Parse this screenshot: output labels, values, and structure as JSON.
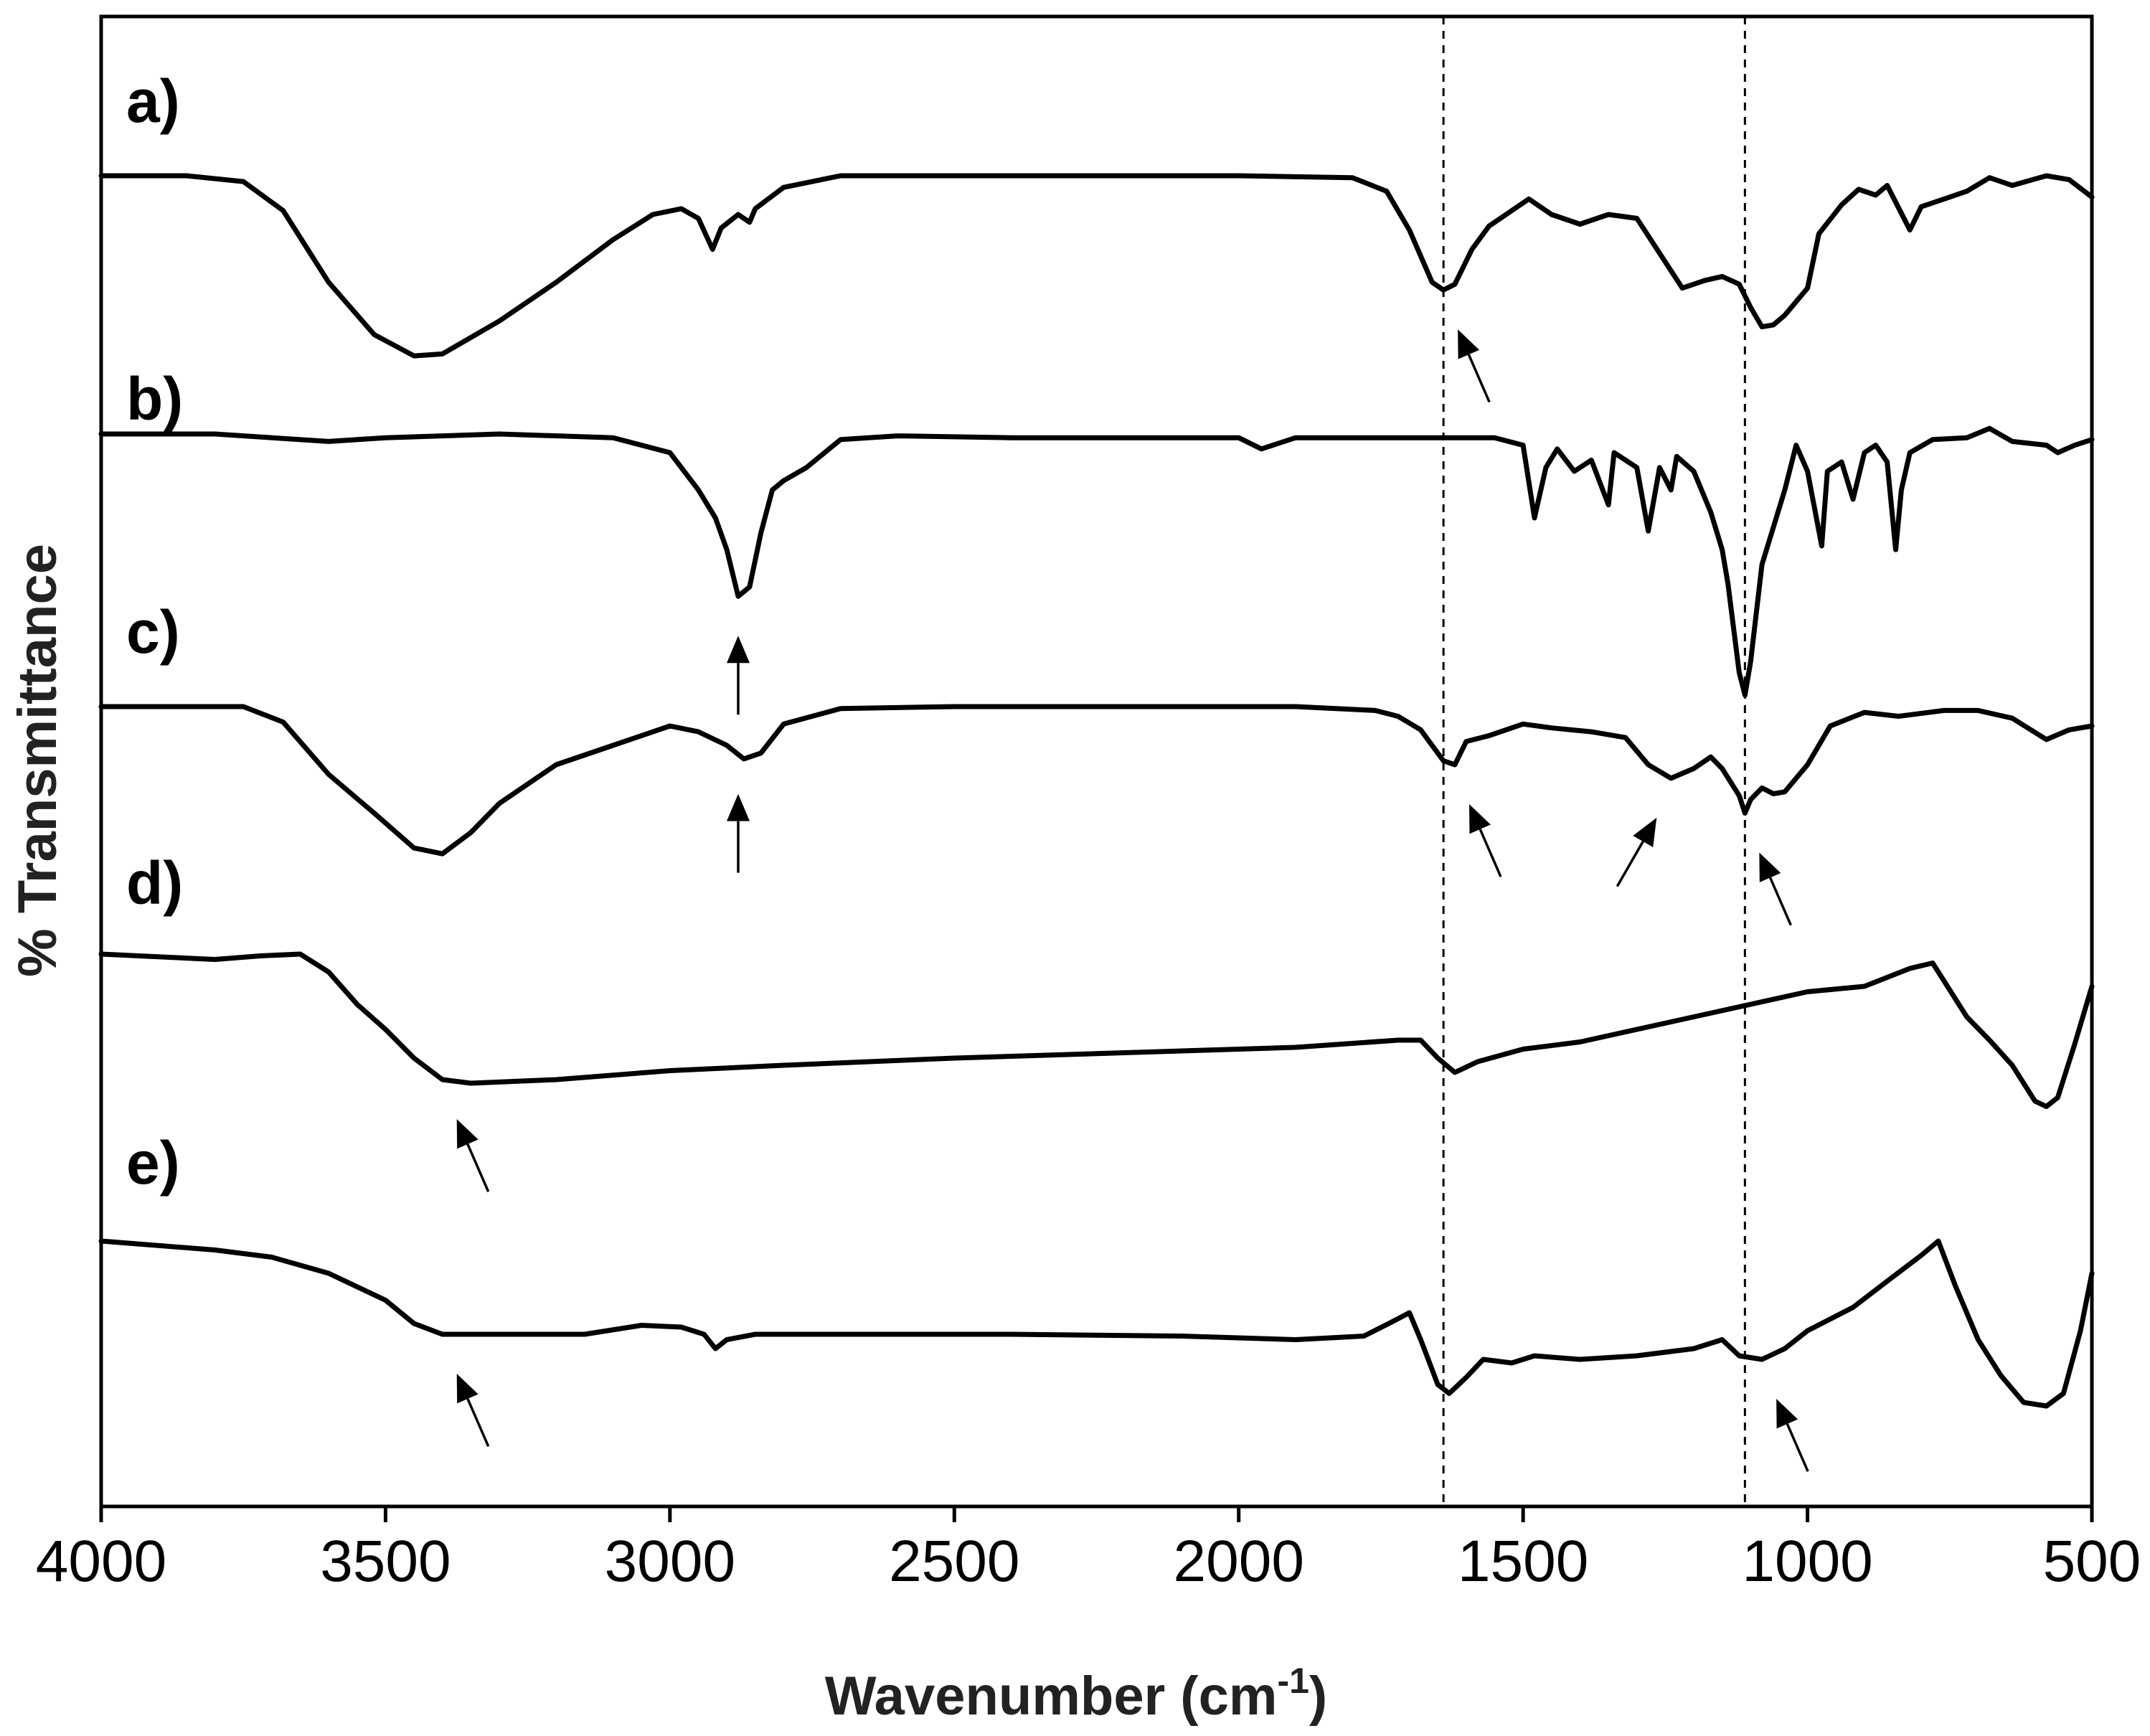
{
  "chart_data": {
    "type": "line",
    "title": "",
    "xlabel": "Wavenumber (cm",
    "xlabel_sup": "-1",
    "xlabel_end": ")",
    "ylabel": "% Transmittance",
    "xlim": [
      4000,
      500
    ],
    "x_reversed": true,
    "xticks": [
      4000,
      3500,
      3000,
      2500,
      2000,
      1500,
      1000,
      500
    ],
    "xtick_labels": [
      "4000",
      "3500",
      "3000",
      "2500",
      "2000",
      "1500",
      "1000",
      "500"
    ],
    "yticks_shown": false,
    "reference_lines": [
      1640,
      1110
    ],
    "series": [
      {
        "name": "a)",
        "points": [
          [
            4000,
            0.0
          ],
          [
            3850,
            0.0
          ],
          [
            3750,
            0.03
          ],
          [
            3680,
            0.18
          ],
          [
            3600,
            0.55
          ],
          [
            3520,
            0.82
          ],
          [
            3450,
            0.93
          ],
          [
            3400,
            0.92
          ],
          [
            3300,
            0.75
          ],
          [
            3200,
            0.55
          ],
          [
            3100,
            0.33
          ],
          [
            3030,
            0.2
          ],
          [
            2980,
            0.17
          ],
          [
            2950,
            0.22
          ],
          [
            2925,
            0.38
          ],
          [
            2910,
            0.27
          ],
          [
            2880,
            0.2
          ],
          [
            2860,
            0.24
          ],
          [
            2850,
            0.17
          ],
          [
            2800,
            0.06
          ],
          [
            2700,
            0.0
          ],
          [
            2500,
            0.0
          ],
          [
            2300,
            0.0
          ],
          [
            2000,
            0.0
          ],
          [
            1800,
            0.01
          ],
          [
            1740,
            0.08
          ],
          [
            1700,
            0.28
          ],
          [
            1660,
            0.55
          ],
          [
            1640,
            0.59
          ],
          [
            1620,
            0.56
          ],
          [
            1590,
            0.38
          ],
          [
            1560,
            0.26
          ],
          [
            1520,
            0.18
          ],
          [
            1490,
            0.12
          ],
          [
            1450,
            0.2
          ],
          [
            1400,
            0.25
          ],
          [
            1350,
            0.2
          ],
          [
            1300,
            0.22
          ],
          [
            1260,
            0.4
          ],
          [
            1220,
            0.58
          ],
          [
            1180,
            0.54
          ],
          [
            1150,
            0.52
          ],
          [
            1120,
            0.56
          ],
          [
            1100,
            0.68
          ],
          [
            1080,
            0.78
          ],
          [
            1060,
            0.77
          ],
          [
            1040,
            0.72
          ],
          [
            1000,
            0.58
          ],
          [
            980,
            0.3
          ],
          [
            940,
            0.15
          ],
          [
            910,
            0.07
          ],
          [
            880,
            0.1
          ],
          [
            860,
            0.05
          ],
          [
            820,
            0.28
          ],
          [
            800,
            0.16
          ],
          [
            760,
            0.12
          ],
          [
            720,
            0.08
          ],
          [
            680,
            0.01
          ],
          [
            640,
            0.05
          ],
          [
            580,
            0.0
          ],
          [
            540,
            0.02
          ],
          [
            500,
            0.11
          ]
        ]
      },
      {
        "name": "b)",
        "points": [
          [
            4000,
            0.0
          ],
          [
            3800,
            0.0
          ],
          [
            3600,
            0.04
          ],
          [
            3500,
            0.02
          ],
          [
            3300,
            0.0
          ],
          [
            3100,
            0.02
          ],
          [
            3000,
            0.1
          ],
          [
            2950,
            0.3
          ],
          [
            2920,
            0.45
          ],
          [
            2900,
            0.62
          ],
          [
            2880,
            0.87
          ],
          [
            2860,
            0.82
          ],
          [
            2840,
            0.53
          ],
          [
            2820,
            0.3
          ],
          [
            2800,
            0.25
          ],
          [
            2760,
            0.18
          ],
          [
            2700,
            0.03
          ],
          [
            2600,
            0.01
          ],
          [
            2400,
            0.02
          ],
          [
            2200,
            0.02
          ],
          [
            2000,
            0.02
          ],
          [
            1960,
            0.08
          ],
          [
            1900,
            0.02
          ],
          [
            1700,
            0.02
          ],
          [
            1550,
            0.02
          ],
          [
            1500,
            0.06
          ],
          [
            1480,
            0.45
          ],
          [
            1460,
            0.18
          ],
          [
            1440,
            0.08
          ],
          [
            1410,
            0.2
          ],
          [
            1380,
            0.14
          ],
          [
            1350,
            0.38
          ],
          [
            1340,
            0.1
          ],
          [
            1300,
            0.18
          ],
          [
            1280,
            0.52
          ],
          [
            1260,
            0.18
          ],
          [
            1240,
            0.3
          ],
          [
            1230,
            0.12
          ],
          [
            1200,
            0.2
          ],
          [
            1170,
            0.42
          ],
          [
            1150,
            0.62
          ],
          [
            1140,
            0.8
          ],
          [
            1120,
            1.28
          ],
          [
            1110,
            1.4
          ],
          [
            1100,
            1.22
          ],
          [
            1080,
            0.7
          ],
          [
            1060,
            0.5
          ],
          [
            1040,
            0.3
          ],
          [
            1020,
            0.06
          ],
          [
            1000,
            0.2
          ],
          [
            975,
            0.6
          ],
          [
            965,
            0.2
          ],
          [
            940,
            0.15
          ],
          [
            920,
            0.35
          ],
          [
            900,
            0.1
          ],
          [
            880,
            0.06
          ],
          [
            860,
            0.15
          ],
          [
            845,
            0.62
          ],
          [
            835,
            0.3
          ],
          [
            820,
            0.1
          ],
          [
            780,
            0.03
          ],
          [
            720,
            0.02
          ],
          [
            680,
            -0.03
          ],
          [
            640,
            0.04
          ],
          [
            580,
            0.06
          ],
          [
            560,
            0.1
          ],
          [
            530,
            0.06
          ],
          [
            500,
            0.03
          ]
        ]
      },
      {
        "name": "c)",
        "points": [
          [
            4000,
            0.0
          ],
          [
            3750,
            0.0
          ],
          [
            3680,
            0.08
          ],
          [
            3600,
            0.35
          ],
          [
            3520,
            0.55
          ],
          [
            3450,
            0.73
          ],
          [
            3400,
            0.76
          ],
          [
            3350,
            0.65
          ],
          [
            3300,
            0.5
          ],
          [
            3200,
            0.3
          ],
          [
            3100,
            0.2
          ],
          [
            3000,
            0.1
          ],
          [
            2950,
            0.13
          ],
          [
            2900,
            0.2
          ],
          [
            2870,
            0.27
          ],
          [
            2840,
            0.24
          ],
          [
            2800,
            0.09
          ],
          [
            2700,
            0.01
          ],
          [
            2500,
            0.0
          ],
          [
            2200,
            0.0
          ],
          [
            1900,
            0.0
          ],
          [
            1760,
            0.02
          ],
          [
            1720,
            0.05
          ],
          [
            1680,
            0.12
          ],
          [
            1640,
            0.28
          ],
          [
            1620,
            0.3
          ],
          [
            1600,
            0.18
          ],
          [
            1560,
            0.15
          ],
          [
            1500,
            0.09
          ],
          [
            1450,
            0.11
          ],
          [
            1380,
            0.13
          ],
          [
            1320,
            0.16
          ],
          [
            1280,
            0.3
          ],
          [
            1240,
            0.37
          ],
          [
            1200,
            0.32
          ],
          [
            1170,
            0.26
          ],
          [
            1150,
            0.32
          ],
          [
            1120,
            0.46
          ],
          [
            1110,
            0.55
          ],
          [
            1100,
            0.48
          ],
          [
            1080,
            0.42
          ],
          [
            1060,
            0.45
          ],
          [
            1040,
            0.44
          ],
          [
            1000,
            0.3
          ],
          [
            960,
            0.1
          ],
          [
            900,
            0.03
          ],
          [
            840,
            0.05
          ],
          [
            760,
            0.02
          ],
          [
            700,
            0.02
          ],
          [
            640,
            0.06
          ],
          [
            580,
            0.17
          ],
          [
            540,
            0.12
          ],
          [
            500,
            0.1
          ]
        ]
      },
      {
        "name": "d)",
        "points": [
          [
            4000,
            0.0
          ],
          [
            3800,
            0.03
          ],
          [
            3720,
            0.01
          ],
          [
            3650,
            0.0
          ],
          [
            3600,
            0.1
          ],
          [
            3550,
            0.28
          ],
          [
            3500,
            0.42
          ],
          [
            3450,
            0.58
          ],
          [
            3400,
            0.7
          ],
          [
            3350,
            0.72
          ],
          [
            3200,
            0.7
          ],
          [
            3000,
            0.65
          ],
          [
            2800,
            0.62
          ],
          [
            2500,
            0.58
          ],
          [
            2200,
            0.55
          ],
          [
            1900,
            0.52
          ],
          [
            1720,
            0.48
          ],
          [
            1680,
            0.48
          ],
          [
            1650,
            0.58
          ],
          [
            1620,
            0.66
          ],
          [
            1580,
            0.6
          ],
          [
            1500,
            0.53
          ],
          [
            1400,
            0.49
          ],
          [
            1200,
            0.35
          ],
          [
            1000,
            0.21
          ],
          [
            900,
            0.18
          ],
          [
            820,
            0.08
          ],
          [
            780,
            0.05
          ],
          [
            760,
            0.15
          ],
          [
            720,
            0.35
          ],
          [
            680,
            0.48
          ],
          [
            640,
            0.62
          ],
          [
            600,
            0.82
          ],
          [
            580,
            0.85
          ],
          [
            560,
            0.8
          ],
          [
            530,
            0.5
          ],
          [
            500,
            0.18
          ]
        ]
      },
      {
        "name": "e)",
        "points": [
          [
            4000,
            0.0
          ],
          [
            3800,
            0.05
          ],
          [
            3700,
            0.09
          ],
          [
            3600,
            0.18
          ],
          [
            3500,
            0.33
          ],
          [
            3450,
            0.46
          ],
          [
            3400,
            0.52
          ],
          [
            3300,
            0.52
          ],
          [
            3150,
            0.52
          ],
          [
            3050,
            0.47
          ],
          [
            2980,
            0.48
          ],
          [
            2940,
            0.52
          ],
          [
            2920,
            0.6
          ],
          [
            2900,
            0.55
          ],
          [
            2850,
            0.52
          ],
          [
            2700,
            0.52
          ],
          [
            2400,
            0.52
          ],
          [
            2100,
            0.53
          ],
          [
            1900,
            0.55
          ],
          [
            1780,
            0.53
          ],
          [
            1730,
            0.45
          ],
          [
            1700,
            0.4
          ],
          [
            1680,
            0.55
          ],
          [
            1650,
            0.8
          ],
          [
            1630,
            0.85
          ],
          [
            1600,
            0.76
          ],
          [
            1570,
            0.66
          ],
          [
            1520,
            0.68
          ],
          [
            1480,
            0.64
          ],
          [
            1400,
            0.66
          ],
          [
            1300,
            0.64
          ],
          [
            1200,
            0.6
          ],
          [
            1150,
            0.55
          ],
          [
            1120,
            0.64
          ],
          [
            1080,
            0.66
          ],
          [
            1040,
            0.6
          ],
          [
            1000,
            0.5
          ],
          [
            920,
            0.37
          ],
          [
            850,
            0.2
          ],
          [
            800,
            0.08
          ],
          [
            770,
            0.0
          ],
          [
            740,
            0.25
          ],
          [
            700,
            0.55
          ],
          [
            660,
            0.75
          ],
          [
            620,
            0.9
          ],
          [
            580,
            0.92
          ],
          [
            550,
            0.85
          ],
          [
            520,
            0.5
          ],
          [
            500,
            0.18
          ]
        ]
      }
    ],
    "arrows": [
      {
        "panel": "a)",
        "x": 1640,
        "dir": "up-left"
      },
      {
        "panel": "b)",
        "x": 2880,
        "dir": "up"
      },
      {
        "panel": "c)",
        "x": 2880,
        "dir": "up"
      },
      {
        "panel": "c)",
        "x": 1620,
        "dir": "up-left"
      },
      {
        "panel": "c)",
        "x": 1240,
        "dir": "up-right"
      },
      {
        "panel": "c)",
        "x": 1110,
        "dir": "up-left"
      },
      {
        "panel": "d)",
        "x": 3400,
        "dir": "up-left"
      },
      {
        "panel": "e)",
        "x": 3400,
        "dir": "up-left"
      },
      {
        "panel": "e)",
        "x": 1080,
        "dir": "up-left"
      }
    ]
  }
}
